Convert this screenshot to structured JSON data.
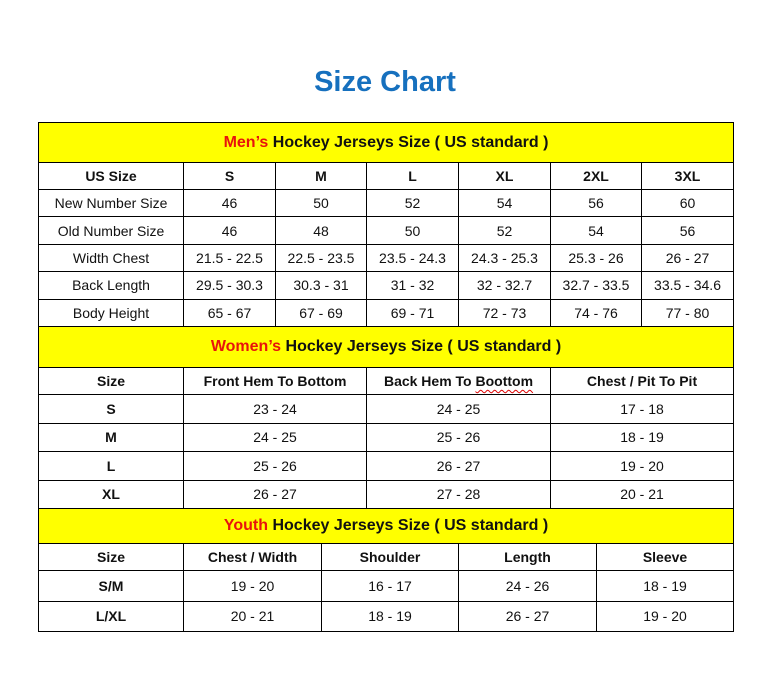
{
  "title": "Size Chart",
  "colors": {
    "title": "#1670be",
    "band": "#ffff00",
    "accent": "#e8140c"
  },
  "sections": [
    {
      "accent": "Men’s",
      "heading": " Hockey Jerseys Size ( US standard )",
      "columns": [
        "US Size",
        "S",
        "M",
        "L",
        "XL",
        "2XL",
        "3XL"
      ],
      "rows": [
        [
          "New Number Size",
          "46",
          "50",
          "52",
          "54",
          "56",
          "60"
        ],
        [
          "Old Number Size",
          "46",
          "48",
          "50",
          "52",
          "54",
          "56"
        ],
        [
          "Width Chest",
          "21.5 - 22.5",
          "22.5 - 23.5",
          "23.5 - 24.3",
          "24.3 - 25.3",
          "25.3 - 26",
          "26 - 27"
        ],
        [
          "Back Length",
          "29.5 - 30.3",
          "30.3 - 31",
          "31 - 32",
          "32 - 32.7",
          "32.7 - 33.5",
          "33.5 - 34.6"
        ],
        [
          "Body Height",
          "65 - 67",
          "67 - 69",
          "69 - 71",
          "72 - 73",
          "74 - 76",
          "77 - 80"
        ]
      ]
    },
    {
      "accent": "Women’s",
      "heading": " Hockey Jerseys Size ( US standard )",
      "columns": [
        "Size",
        "Front Hem To Bottom",
        "Back Hem To Boottom",
        "Chest / Pit To Pit"
      ],
      "rows": [
        [
          "S",
          "23 - 24",
          "24 - 25",
          "17 - 18"
        ],
        [
          "M",
          "24 - 25",
          "25 - 26",
          "18 - 19"
        ],
        [
          "L",
          "25 - 26",
          "26 - 27",
          "19 - 20"
        ],
        [
          "XL",
          "26 - 27",
          "27 - 28",
          "20 - 21"
        ]
      ]
    },
    {
      "accent": "Youth",
      "heading": " Hockey Jerseys Size ( US standard )",
      "columns": [
        "Size",
        "Chest / Width",
        "Shoulder",
        "Length",
        "Sleeve"
      ],
      "rows": [
        [
          "S/M",
          "19 - 20",
          "16 - 17",
          "24 - 26",
          "18 - 19"
        ],
        [
          "L/XL",
          "20 - 21",
          "18 - 19",
          "26 - 27",
          "19 - 20"
        ]
      ]
    }
  ]
}
